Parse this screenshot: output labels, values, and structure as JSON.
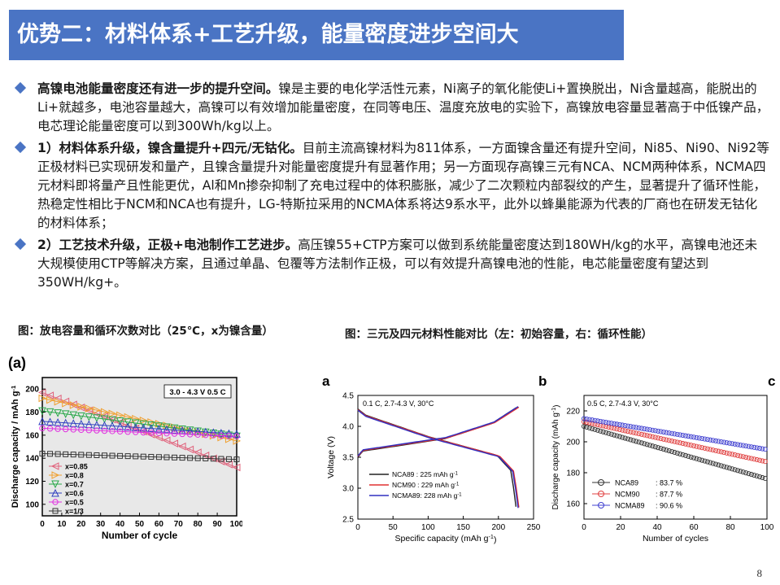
{
  "title": "优势二：材料体系+工艺升级，能量密度进步空间大",
  "bullets": [
    {
      "lead": "高镍电池能量密度还有进一步的提升空间。",
      "text": "镍是主要的电化学活性元素，Ni离子的氧化能使Li+置换脱出，Ni含量越高，能脱出的Li+就越多，电池容量越大，高镍可以有效增加能量密度，在同等电压、温度充放电的实验下，高镍放电容量显著高于中低镍产品，电芯理论能量密度可以到300Wh/kg以上。"
    },
    {
      "lead": "1）材料体系升级，镍含量提升+四元/无钴化。",
      "text": "目前主流高镍材料为811体系，一方面镍含量还有提升空间，Ni85、Ni90、Ni92等正极材料已实现研发和量产，且镍含量提升对能量密度提升有显著作用；另一方面现存高镍三元有NCA、NCM两种体系，NCMA四元材料即将量产且性能更优，Al和Mn掺杂抑制了充电过程中的体积膨胀，减少了二次颗粒内部裂纹的产生，显著提升了循环性能，热稳定性相比于NCM和NCA也有提升，LG-特斯拉采用的NCMA体系将达9系水平，此外以蜂巢能源为代表的厂商也在研发无钴化的材料体系；"
    },
    {
      "lead": "2）工艺技术升级，正极+电池制作工艺进步。",
      "text": "高压镍55+CTP方案可以做到系统能量密度达到180WH/kg的水平，高镍电池还未大规模使用CTP等解决方案，且通过单晶、包覆等方法制作正极，可以有效提升高镍电池的性能，电芯能量密度有望达到350WH/kg+。"
    }
  ],
  "captions": {
    "left": "图：放电容量和循环次数对比（25℃，x为镍含量）",
    "right": "图：三元及四元材料性能对比（左：初始容量，右：循环性能）"
  },
  "page_number": "8",
  "chart_data": [
    {
      "type": "line",
      "panel_label": "(a)",
      "annotation": "3.0 - 4.3 V  0.5 C",
      "xlabel": "Number of cycle",
      "ylabel": "Discharge capacity / mAh g",
      "ylabel_superscript": "-1",
      "xlim": [
        0,
        100
      ],
      "ylim": [
        90,
        210
      ],
      "x_ticks": [
        0,
        10,
        20,
        30,
        40,
        50,
        60,
        70,
        80,
        90,
        100
      ],
      "y_ticks": [
        100,
        120,
        140,
        160,
        180,
        200
      ],
      "x": [
        0,
        100
      ],
      "series": [
        {
          "name": "x=0.85",
          "values": [
            197,
            132
          ],
          "color": "#e0607a",
          "marker": "tri-left"
        },
        {
          "name": "x=0.8",
          "values": [
            192,
            155
          ],
          "color": "#f0a030",
          "marker": "tri-right"
        },
        {
          "name": "x=0.7",
          "values": [
            181,
            159
          ],
          "color": "#2aa84a",
          "marker": "tri-down"
        },
        {
          "name": "x=0.6",
          "values": [
            172,
            161
          ],
          "color": "#3040c0",
          "marker": "tri-up"
        },
        {
          "name": "x=0.5",
          "values": [
            166,
            159
          ],
          "color": "#e030e0",
          "marker": "circle"
        },
        {
          "name": "x=1/3",
          "values": [
            144,
            139
          ],
          "color": "#333333",
          "marker": "square"
        }
      ]
    },
    {
      "type": "line",
      "panel_label": "a",
      "annotation": "0.1 C, 2.7-4.3 V, 30°C",
      "xlabel": "Specific capacity (mAh g",
      "xlabel_superscript": "-1",
      "xlabel_suffix": ")",
      "ylabel": "Voltage (V)",
      "xlim": [
        0,
        250
      ],
      "ylim": [
        2.5,
        4.5
      ],
      "x_ticks": [
        0,
        50,
        100,
        150,
        200,
        250
      ],
      "y_ticks": [
        "2.5",
        "3.0",
        "3.5",
        "4.0",
        "4.5"
      ],
      "series": [
        {
          "name": "NCA89 : 225 mAh g",
          "superscript": "-1",
          "color": "#222222",
          "capacity": 225
        },
        {
          "name": "NCM90 : 229 mAh g",
          "superscript": "-1",
          "color": "#e03030",
          "capacity": 229
        },
        {
          "name": "NCMA89: 228 mAh g",
          "superscript": "-1",
          "color": "#3030c0",
          "capacity": 228
        }
      ]
    },
    {
      "type": "line",
      "panel_label": "b",
      "chart_type_note": "",
      "xlabel": "",
      "ylabel": ""
    },
    {
      "type": "scatter",
      "panel_label": "c",
      "annotation": "0.5 C, 2.7-4.3 V, 30°C",
      "xlabel": "Number of cycles",
      "ylabel": "Discharge capacity (mAh g",
      "ylabel_superscript": "-1",
      "ylabel_suffix": ")",
      "xlim": [
        0,
        100
      ],
      "ylim": [
        150,
        230
      ],
      "x_ticks": [
        0,
        20,
        40,
        60,
        80,
        100
      ],
      "y_ticks": [
        160,
        180,
        200,
        220
      ],
      "x": [
        0,
        100
      ],
      "series": [
        {
          "name": "NCA89",
          "retention": ": 83.7 %",
          "values": [
            210,
            176
          ],
          "color": "#333333"
        },
        {
          "name": "NCM90",
          "retention": ": 87.7 %",
          "values": [
            213,
            187
          ],
          "color": "#e04040"
        },
        {
          "name": "NCMA89",
          "retention": ": 90.6 %",
          "values": [
            215,
            195
          ],
          "color": "#4040d0"
        }
      ]
    }
  ]
}
